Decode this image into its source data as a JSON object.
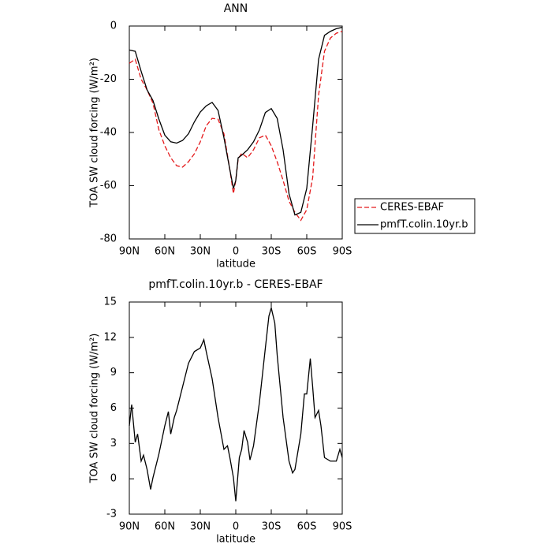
{
  "chart_data": [
    {
      "type": "line",
      "title": "ANN",
      "x_label": "latitude",
      "y_label": "TOA SW cloud forcing (W/m²)",
      "x": [
        90,
        85,
        80,
        75,
        70,
        65,
        60,
        55,
        50,
        45,
        40,
        35,
        30,
        25,
        20,
        15,
        10,
        5,
        2,
        0,
        -2,
        -5,
        -10,
        -15,
        -20,
        -25,
        -30,
        -35,
        -40,
        -45,
        -50,
        -55,
        -60,
        -65,
        -70,
        -75,
        -80,
        -85,
        -90
      ],
      "series": [
        {
          "name": "CERES-EBAF",
          "color": "#e41a1c",
          "style": "dashed",
          "values": [
            -14,
            -12.5,
            -20,
            -24,
            -29,
            -39,
            -45,
            -49.5,
            -52.5,
            -53,
            -51,
            -48,
            -43.5,
            -37.5,
            -34.7,
            -35,
            -40.5,
            -54,
            -63,
            -58,
            -50,
            -47.8,
            -49.5,
            -46.5,
            -42,
            -41,
            -45,
            -51,
            -58,
            -65.8,
            -70,
            -73,
            -69,
            -57,
            -26,
            -9.5,
            -4.5,
            -2.7,
            -2
          ]
        },
        {
          "name": "pmfT.colin.10yr.b",
          "color": "#000000",
          "style": "solid",
          "values": [
            -9,
            -9.5,
            -17,
            -24,
            -28,
            -35,
            -41,
            -43.5,
            -44,
            -43,
            -40.5,
            -36,
            -32.3,
            -30,
            -28.7,
            -31.7,
            -42,
            -54,
            -61,
            -58,
            -49.5,
            -48.5,
            -46.5,
            -43.5,
            -39,
            -32.5,
            -31,
            -34.7,
            -46.5,
            -63,
            -71,
            -70,
            -61,
            -37.5,
            -12.5,
            -3.5,
            -2,
            -1,
            -0.5
          ]
        }
      ],
      "xlim": [
        90,
        -90
      ],
      "xticks": [
        {
          "value": 90,
          "label": "90N"
        },
        {
          "value": 60,
          "label": "60N"
        },
        {
          "value": 30,
          "label": "30N"
        },
        0,
        {
          "value": -30,
          "label": "30S"
        },
        {
          "value": -60,
          "label": "60S"
        },
        {
          "value": -90,
          "label": "90S"
        }
      ],
      "ylim": [
        -80,
        0
      ],
      "yticks": [
        -80,
        -60,
        -40,
        -20,
        0
      ],
      "legend": "right"
    },
    {
      "type": "line",
      "title": "pmfT.colin.10yr.b - CERES-EBAF",
      "x_label": "latitude",
      "y_label": "TOA SW cloud forcing (W/m²)",
      "x": [
        90,
        88,
        85,
        83,
        80,
        78,
        75,
        72,
        70,
        65,
        60,
        57,
        55,
        52,
        50,
        45,
        40,
        35,
        30,
        27,
        25,
        20,
        15,
        10,
        7,
        5,
        2,
        0,
        -3,
        -5,
        -7,
        -10,
        -12,
        -15,
        -20,
        -25,
        -28,
        -30,
        -33,
        -35,
        -40,
        -45,
        -48,
        -50,
        -55,
        -58,
        -60,
        -63,
        -65,
        -67,
        -70,
        -72,
        -75,
        -80,
        -85,
        -88,
        -90
      ],
      "series": [
        {
          "name": "pmfT.colin.10yr.b - CERES-EBAF",
          "color": "#000000",
          "style": "solid",
          "values": [
            4.5,
            6.3,
            3.1,
            3.8,
            1.5,
            2,
            0.8,
            -0.9,
            0.1,
            2.1,
            4.5,
            5.7,
            3.8,
            5.2,
            5.8,
            7.8,
            9.8,
            10.8,
            11.1,
            11.8,
            10.8,
            8.5,
            5.2,
            2.5,
            2.8,
            1.8,
            0.1,
            -1.9,
            1.8,
            2.5,
            4.1,
            3.1,
            1.6,
            2.8,
            6.5,
            11.1,
            13.8,
            14.5,
            13.2,
            10.5,
            5.2,
            1.5,
            0.5,
            0.8,
            3.8,
            7.2,
            7.2,
            10.2,
            7.8,
            5.2,
            5.8,
            4.5,
            1.8,
            1.5,
            1.5,
            2.5,
            1.8
          ]
        }
      ],
      "xlim": [
        90,
        -90
      ],
      "xticks": [
        {
          "value": 90,
          "label": "90N"
        },
        {
          "value": 60,
          "label": "60N"
        },
        {
          "value": 30,
          "label": "30N"
        },
        0,
        {
          "value": -30,
          "label": "30S"
        },
        {
          "value": -60,
          "label": "60S"
        },
        {
          "value": -90,
          "label": "90S"
        }
      ],
      "ylim": [
        -3,
        15
      ],
      "yticks": [
        -3,
        0,
        3,
        6,
        9,
        12,
        15
      ]
    }
  ]
}
